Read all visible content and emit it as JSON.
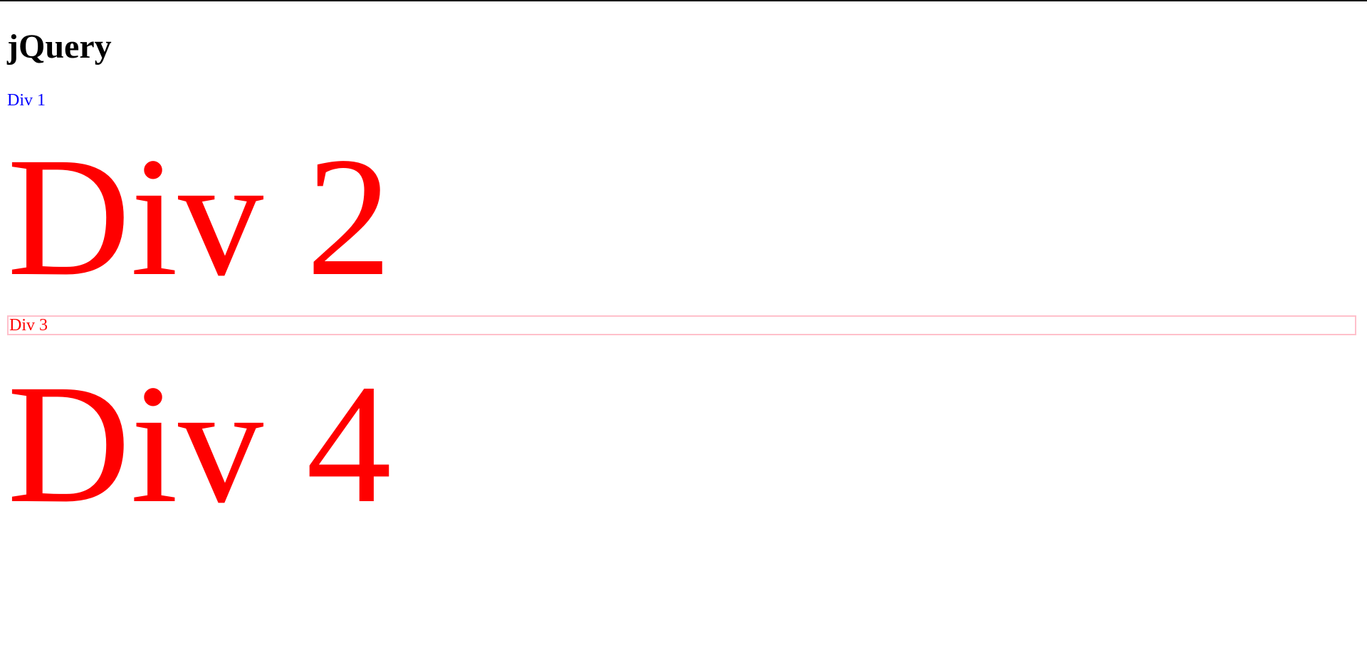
{
  "page": {
    "title": "jQuery"
  },
  "divs": [
    {
      "label": "Div 1",
      "color": "#0000ff"
    },
    {
      "label": "Div 2",
      "color": "#ff0000"
    },
    {
      "label": "Div 3",
      "color": "#ff0000",
      "border_color": "#ffc0cb"
    },
    {
      "label": "Div 4",
      "color": "#ff0000"
    }
  ]
}
